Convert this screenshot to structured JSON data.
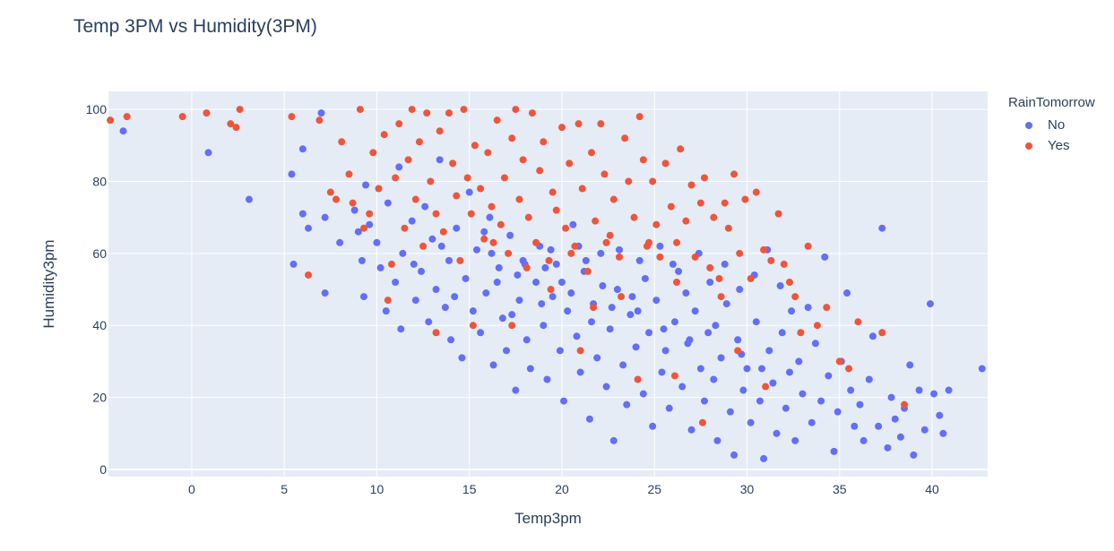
{
  "chart_data": {
    "type": "scatter",
    "title": "Temp 3PM vs Humidity(3PM)",
    "xlabel": "Temp3pm",
    "ylabel": "Humidity3pm",
    "xlim": [
      -4.5,
      43
    ],
    "ylim": [
      -2,
      105
    ],
    "xticks": [
      0,
      5,
      10,
      15,
      20,
      25,
      30,
      35,
      40
    ],
    "yticks": [
      0,
      20,
      40,
      60,
      80,
      100
    ],
    "legend_title": "RainTomorrow",
    "series": [
      {
        "name": "No",
        "color": "#636efa",
        "points": [
          [
            -3.7,
            94
          ],
          [
            0.9,
            88
          ],
          [
            3.1,
            75
          ],
          [
            5.4,
            82
          ],
          [
            5.5,
            57
          ],
          [
            6.0,
            89
          ],
          [
            6.0,
            71
          ],
          [
            6.3,
            67
          ],
          [
            7.0,
            99
          ],
          [
            7.2,
            49
          ],
          [
            7.2,
            70
          ],
          [
            8.0,
            63
          ],
          [
            8.8,
            72
          ],
          [
            9.0,
            66
          ],
          [
            9.2,
            58
          ],
          [
            9.3,
            48
          ],
          [
            9.4,
            79
          ],
          [
            9.6,
            68
          ],
          [
            10.0,
            63
          ],
          [
            10.2,
            56
          ],
          [
            10.5,
            44
          ],
          [
            10.6,
            74
          ],
          [
            11.0,
            52
          ],
          [
            11.2,
            84
          ],
          [
            11.3,
            39
          ],
          [
            11.4,
            60
          ],
          [
            11.9,
            69
          ],
          [
            12.1,
            47
          ],
          [
            12.4,
            55
          ],
          [
            12.6,
            73
          ],
          [
            12.8,
            41
          ],
          [
            13.0,
            64
          ],
          [
            13.2,
            50
          ],
          [
            13.4,
            86
          ],
          [
            13.7,
            45
          ],
          [
            13.9,
            58
          ],
          [
            14.0,
            36
          ],
          [
            14.3,
            67
          ],
          [
            14.6,
            31
          ],
          [
            14.8,
            53
          ],
          [
            15.0,
            77
          ],
          [
            15.2,
            44
          ],
          [
            15.4,
            61
          ],
          [
            15.6,
            38
          ],
          [
            15.9,
            49
          ],
          [
            16.1,
            70
          ],
          [
            16.3,
            29
          ],
          [
            16.6,
            56
          ],
          [
            16.8,
            42
          ],
          [
            17.0,
            33
          ],
          [
            17.2,
            65
          ],
          [
            17.5,
            22
          ],
          [
            17.7,
            47
          ],
          [
            17.9,
            58
          ],
          [
            18.1,
            36
          ],
          [
            18.3,
            28
          ],
          [
            18.6,
            52
          ],
          [
            18.8,
            62
          ],
          [
            19.0,
            40
          ],
          [
            19.2,
            25
          ],
          [
            19.5,
            48
          ],
          [
            19.7,
            57
          ],
          [
            19.9,
            33
          ],
          [
            20.1,
            19
          ],
          [
            20.3,
            44
          ],
          [
            20.6,
            68
          ],
          [
            20.8,
            37
          ],
          [
            21.0,
            27
          ],
          [
            21.2,
            55
          ],
          [
            21.5,
            14
          ],
          [
            21.7,
            46
          ],
          [
            21.9,
            31
          ],
          [
            22.1,
            60
          ],
          [
            22.4,
            23
          ],
          [
            22.6,
            39
          ],
          [
            22.8,
            8
          ],
          [
            23.0,
            50
          ],
          [
            23.3,
            29
          ],
          [
            23.5,
            18
          ],
          [
            23.7,
            43
          ],
          [
            24.0,
            34
          ],
          [
            24.2,
            58
          ],
          [
            24.4,
            21
          ],
          [
            24.7,
            38
          ],
          [
            24.9,
            12
          ],
          [
            25.1,
            47
          ],
          [
            25.4,
            27
          ],
          [
            25.6,
            33
          ],
          [
            25.8,
            17
          ],
          [
            26.1,
            41
          ],
          [
            26.3,
            55
          ],
          [
            26.5,
            23
          ],
          [
            26.8,
            35
          ],
          [
            27.0,
            11
          ],
          [
            27.2,
            44
          ],
          [
            27.5,
            28
          ],
          [
            27.7,
            19
          ],
          [
            27.9,
            38
          ],
          [
            28.2,
            25
          ],
          [
            28.4,
            8
          ],
          [
            28.6,
            31
          ],
          [
            28.9,
            46
          ],
          [
            29.1,
            16
          ],
          [
            29.3,
            4
          ],
          [
            29.5,
            36
          ],
          [
            29.8,
            22
          ],
          [
            30.0,
            28
          ],
          [
            30.2,
            13
          ],
          [
            30.5,
            41
          ],
          [
            30.7,
            19
          ],
          [
            30.9,
            3
          ],
          [
            31.2,
            33
          ],
          [
            31.4,
            24
          ],
          [
            31.6,
            10
          ],
          [
            31.9,
            38
          ],
          [
            32.1,
            17
          ],
          [
            32.3,
            27
          ],
          [
            32.6,
            8
          ],
          [
            32.8,
            30
          ],
          [
            33.0,
            21
          ],
          [
            33.3,
            45
          ],
          [
            33.5,
            13
          ],
          [
            33.7,
            35
          ],
          [
            34.0,
            19
          ],
          [
            34.2,
            59
          ],
          [
            34.4,
            26
          ],
          [
            34.7,
            5
          ],
          [
            34.9,
            16
          ],
          [
            35.1,
            30
          ],
          [
            35.4,
            49
          ],
          [
            35.6,
            22
          ],
          [
            35.8,
            12
          ],
          [
            36.1,
            18
          ],
          [
            36.3,
            8
          ],
          [
            36.6,
            25
          ],
          [
            36.8,
            37
          ],
          [
            37.1,
            12
          ],
          [
            37.3,
            67
          ],
          [
            37.6,
            6
          ],
          [
            37.8,
            20
          ],
          [
            38.0,
            14
          ],
          [
            38.3,
            9
          ],
          [
            38.5,
            17
          ],
          [
            38.8,
            29
          ],
          [
            39.0,
            4
          ],
          [
            39.3,
            22
          ],
          [
            39.6,
            11
          ],
          [
            39.9,
            46
          ],
          [
            40.1,
            21
          ],
          [
            40.4,
            15
          ],
          [
            40.6,
            10
          ],
          [
            40.9,
            22
          ],
          [
            42.7,
            28
          ],
          [
            12.0,
            57
          ],
          [
            13.5,
            62
          ],
          [
            14.2,
            48
          ],
          [
            15.8,
            66
          ],
          [
            16.5,
            52
          ],
          [
            17.3,
            43
          ],
          [
            18.0,
            57
          ],
          [
            18.9,
            46
          ],
          [
            19.4,
            61
          ],
          [
            20.0,
            52
          ],
          [
            20.9,
            62
          ],
          [
            21.6,
            41
          ],
          [
            22.2,
            51
          ],
          [
            23.1,
            61
          ],
          [
            23.8,
            48
          ],
          [
            24.5,
            53
          ],
          [
            25.3,
            62
          ],
          [
            26.0,
            57
          ],
          [
            26.7,
            49
          ],
          [
            27.4,
            60
          ],
          [
            28.0,
            52
          ],
          [
            28.8,
            57
          ],
          [
            29.6,
            50
          ],
          [
            30.4,
            54
          ],
          [
            31.1,
            61
          ],
          [
            31.8,
            51
          ],
          [
            32.4,
            44
          ],
          [
            16.2,
            60
          ],
          [
            17.6,
            54
          ],
          [
            19.1,
            56
          ],
          [
            20.5,
            49
          ],
          [
            21.3,
            58
          ],
          [
            22.7,
            45
          ],
          [
            24.1,
            44
          ],
          [
            25.5,
            39
          ],
          [
            26.9,
            36
          ],
          [
            28.3,
            40
          ],
          [
            29.7,
            32
          ],
          [
            30.8,
            28
          ]
        ]
      },
      {
        "name": "Yes",
        "color": "#ef553b",
        "points": [
          [
            -4.4,
            97
          ],
          [
            -3.5,
            98
          ],
          [
            -0.5,
            98
          ],
          [
            0.8,
            99
          ],
          [
            2.1,
            96
          ],
          [
            2.4,
            95
          ],
          [
            2.6,
            100
          ],
          [
            5.4,
            98
          ],
          [
            6.3,
            54
          ],
          [
            6.9,
            97
          ],
          [
            7.5,
            77
          ],
          [
            7.8,
            75
          ],
          [
            8.1,
            91
          ],
          [
            8.5,
            82
          ],
          [
            8.7,
            74
          ],
          [
            9.1,
            100
          ],
          [
            9.3,
            67
          ],
          [
            9.6,
            71
          ],
          [
            9.8,
            88
          ],
          [
            10.1,
            78
          ],
          [
            10.4,
            93
          ],
          [
            10.6,
            47
          ],
          [
            10.8,
            57
          ],
          [
            11.0,
            81
          ],
          [
            11.2,
            96
          ],
          [
            11.5,
            67
          ],
          [
            11.7,
            86
          ],
          [
            11.9,
            100
          ],
          [
            12.1,
            75
          ],
          [
            12.3,
            91
          ],
          [
            12.5,
            62
          ],
          [
            12.7,
            99
          ],
          [
            12.9,
            80
          ],
          [
            13.2,
            71
          ],
          [
            13.4,
            94
          ],
          [
            13.6,
            66
          ],
          [
            13.9,
            99
          ],
          [
            14.1,
            85
          ],
          [
            14.3,
            76
          ],
          [
            14.5,
            58
          ],
          [
            14.7,
            100
          ],
          [
            14.9,
            81
          ],
          [
            15.1,
            71
          ],
          [
            15.3,
            90
          ],
          [
            15.6,
            78
          ],
          [
            15.8,
            64
          ],
          [
            16.0,
            88
          ],
          [
            16.2,
            73
          ],
          [
            16.5,
            97
          ],
          [
            16.7,
            68
          ],
          [
            16.9,
            81
          ],
          [
            17.1,
            60
          ],
          [
            17.3,
            92
          ],
          [
            17.5,
            100
          ],
          [
            17.7,
            75
          ],
          [
            17.9,
            86
          ],
          [
            18.2,
            70
          ],
          [
            18.4,
            99
          ],
          [
            18.6,
            63
          ],
          [
            18.8,
            83
          ],
          [
            19.0,
            91
          ],
          [
            19.3,
            58
          ],
          [
            19.5,
            77
          ],
          [
            19.7,
            72
          ],
          [
            20.0,
            95
          ],
          [
            20.2,
            67
          ],
          [
            20.4,
            85
          ],
          [
            20.7,
            62
          ],
          [
            20.9,
            96
          ],
          [
            21.1,
            78
          ],
          [
            21.4,
            55
          ],
          [
            21.6,
            88
          ],
          [
            21.8,
            69
          ],
          [
            22.1,
            96
          ],
          [
            22.3,
            82
          ],
          [
            22.6,
            65
          ],
          [
            22.8,
            75
          ],
          [
            23.1,
            59
          ],
          [
            23.4,
            92
          ],
          [
            23.6,
            80
          ],
          [
            23.9,
            70
          ],
          [
            24.2,
            98
          ],
          [
            24.4,
            86
          ],
          [
            24.6,
            62
          ],
          [
            24.9,
            80
          ],
          [
            25.1,
            68
          ],
          [
            25.3,
            59
          ],
          [
            25.6,
            85
          ],
          [
            25.9,
            73
          ],
          [
            26.2,
            63
          ],
          [
            26.4,
            89
          ],
          [
            26.7,
            69
          ],
          [
            27.0,
            79
          ],
          [
            27.2,
            59
          ],
          [
            27.5,
            74
          ],
          [
            27.7,
            81
          ],
          [
            28.0,
            56
          ],
          [
            28.2,
            70
          ],
          [
            28.5,
            53
          ],
          [
            28.8,
            74
          ],
          [
            29.0,
            67
          ],
          [
            29.3,
            82
          ],
          [
            29.6,
            60
          ],
          [
            29.9,
            75
          ],
          [
            30.2,
            53
          ],
          [
            30.5,
            77
          ],
          [
            30.9,
            61
          ],
          [
            31.3,
            58
          ],
          [
            31.7,
            71
          ],
          [
            32.0,
            57
          ],
          [
            32.3,
            52
          ],
          [
            32.6,
            48
          ],
          [
            32.9,
            38
          ],
          [
            33.3,
            62
          ],
          [
            33.8,
            40
          ],
          [
            34.3,
            45
          ],
          [
            35.0,
            30
          ],
          [
            35.5,
            28
          ],
          [
            36.0,
            41
          ],
          [
            37.3,
            38
          ],
          [
            38.5,
            18
          ],
          [
            21.0,
            33
          ],
          [
            24.1,
            25
          ],
          [
            26.1,
            26
          ],
          [
            27.6,
            13
          ],
          [
            29.5,
            33
          ],
          [
            31.0,
            23
          ],
          [
            17.3,
            40
          ],
          [
            15.2,
            40
          ],
          [
            13.2,
            38
          ],
          [
            22.4,
            63
          ],
          [
            24.7,
            63
          ],
          [
            20.5,
            60
          ],
          [
            18.1,
            56
          ],
          [
            16.3,
            63
          ],
          [
            19.4,
            50
          ],
          [
            21.7,
            45
          ],
          [
            23.2,
            48
          ],
          [
            26.2,
            52
          ],
          [
            28.6,
            48
          ]
        ]
      }
    ]
  }
}
